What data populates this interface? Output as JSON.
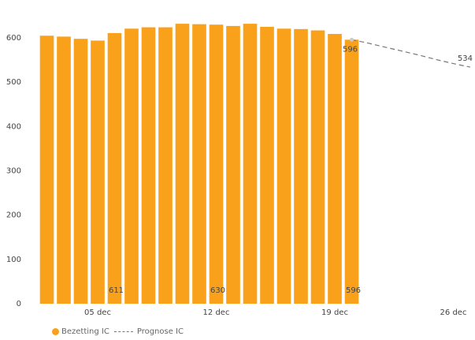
{
  "colors": {
    "bar": "#f9a11b",
    "forecast": "#777777"
  },
  "chart_data": {
    "type": "bar",
    "title": "",
    "xlabel": "",
    "ylabel": "",
    "ylim": [
      0,
      650
    ],
    "yticks": [
      "0",
      "100",
      "200",
      "300",
      "400",
      "500",
      "600"
    ],
    "x_tick_labels": [
      {
        "label": "05 dec",
        "x": "2022-12-05"
      },
      {
        "label": "12 dec",
        "x": "2022-12-12"
      },
      {
        "label": "19 dec",
        "x": "2022-12-19"
      },
      {
        "label": "26 dec",
        "x": "2022-12-26"
      }
    ],
    "x_range": [
      "2022-12-01",
      "2022-12-27"
    ],
    "series": [
      {
        "name": "Bezetting IC",
        "kind": "bar",
        "x": [
          "2022-12-02",
          "2022-12-03",
          "2022-12-04",
          "2022-12-05",
          "2022-12-06",
          "2022-12-07",
          "2022-12-08",
          "2022-12-09",
          "2022-12-10",
          "2022-12-11",
          "2022-12-12",
          "2022-12-13",
          "2022-12-14",
          "2022-12-15",
          "2022-12-16",
          "2022-12-17",
          "2022-12-18",
          "2022-12-19",
          "2022-12-20"
        ],
        "values": [
          605,
          603,
          598,
          594,
          611,
          621,
          624,
          624,
          632,
          631,
          630,
          627,
          632,
          625,
          621,
          620,
          617,
          609,
          596
        ]
      },
      {
        "name": "Prognose IC",
        "kind": "line",
        "style": "dashed",
        "x": [
          "2022-12-20",
          "2022-12-21",
          "2022-12-22",
          "2022-12-23",
          "2022-12-24",
          "2022-12-25",
          "2022-12-26",
          "2022-12-27"
        ],
        "values": [
          596,
          588,
          579,
          570,
          561,
          551,
          542,
          534
        ]
      }
    ],
    "data_labels": [
      {
        "text": "611",
        "x": "2022-12-06",
        "position": "bottom"
      },
      {
        "text": "630",
        "x": "2022-12-12",
        "position": "bottom"
      },
      {
        "text": "596",
        "x": "2022-12-20",
        "position": "bottom"
      },
      {
        "text": "596",
        "x": "2022-12-20",
        "position": "top"
      },
      {
        "text": "534",
        "x": "2022-12-27",
        "position": "top"
      }
    ],
    "grid": false,
    "legend_position": "bottom-left"
  }
}
